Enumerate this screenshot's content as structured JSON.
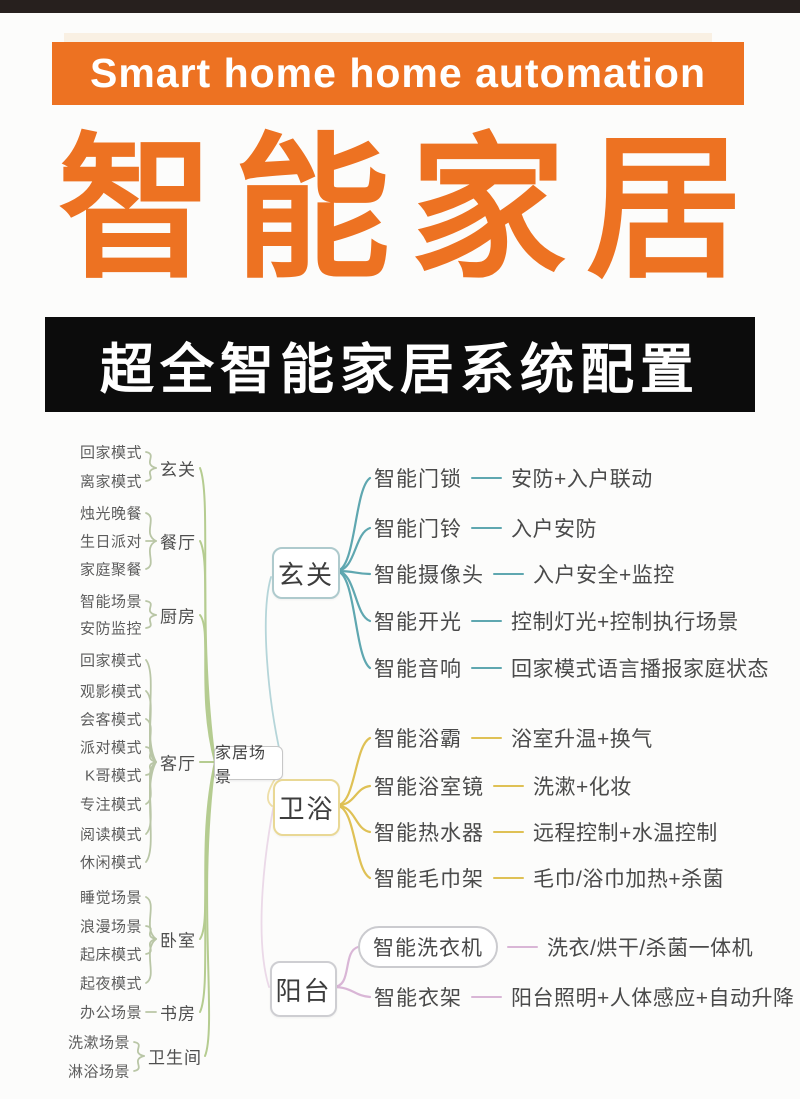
{
  "colors": {
    "orange": "#ED7222",
    "dark_bar": "#0C0C0C",
    "left_tree_green": "#B5CC90",
    "left_bracket_green": "#B9C6A6",
    "entry_teal": "#5FA7B0",
    "entry_box_border": "#AECACD",
    "bath_gold": "#DFC155",
    "bath_box_border": "#E9D895",
    "balcony_pink": "#D9B6D6",
    "balcony_box_border": "#CECED2"
  },
  "header": {
    "banner": {
      "text": "Smart home home automation"
    },
    "title": {
      "text": "智能家居",
      "chars": [
        "智",
        "能",
        "家",
        "居"
      ]
    },
    "subtitle": {
      "text": "超全智能家居系统配置"
    }
  },
  "mindmap": {
    "root": {
      "label": "家居场景"
    },
    "left_groups": [
      {
        "label": "玄关",
        "items": [
          "回家模式",
          "离家模式"
        ]
      },
      {
        "label": "餐厅",
        "items": [
          "烛光晚餐",
          "生日派对",
          "家庭聚餐"
        ]
      },
      {
        "label": "厨房",
        "items": [
          "智能场景",
          "安防监控"
        ]
      },
      {
        "label": "客厅",
        "items": [
          "回家模式",
          "观影模式",
          "会客模式",
          "派对模式",
          "K哥模式",
          "专注模式",
          "阅读模式",
          "休闲模式"
        ]
      },
      {
        "label": "卧室",
        "items": [
          "睡觉场景",
          "浪漫场景",
          "起床模式",
          "起夜模式"
        ]
      },
      {
        "label": "书房",
        "items": [
          "办公场景"
        ]
      },
      {
        "label": "卫生间",
        "items": [
          "洗漱场景",
          "淋浴场景"
        ]
      }
    ],
    "right_groups": [
      {
        "label": "玄关",
        "devices": [
          {
            "name": "智能门锁",
            "desc": "安防+入户联动"
          },
          {
            "name": "智能门铃",
            "desc": "入户安防"
          },
          {
            "name": "智能摄像头",
            "desc": "入户安全+监控"
          },
          {
            "name": "智能开光",
            "desc": "控制灯光+控制执行场景"
          },
          {
            "name": "智能音响",
            "desc": "回家模式语言播报家庭状态"
          }
        ]
      },
      {
        "label": "卫浴",
        "devices": [
          {
            "name": "智能浴霸",
            "desc": "浴室升温+换气"
          },
          {
            "name": "智能浴室镜",
            "desc": "洗漱+化妆"
          },
          {
            "name": "智能热水器",
            "desc": "远程控制+水温控制"
          },
          {
            "name": "智能毛巾架",
            "desc": "毛巾/浴巾加热+杀菌"
          }
        ]
      },
      {
        "label": "阳台",
        "devices": [
          {
            "name": "智能洗衣机",
            "desc": "洗衣/烘干/杀菌一体机"
          },
          {
            "name": "智能衣架",
            "desc": "阳台照明+人体感应+自动升降"
          }
        ]
      }
    ]
  }
}
